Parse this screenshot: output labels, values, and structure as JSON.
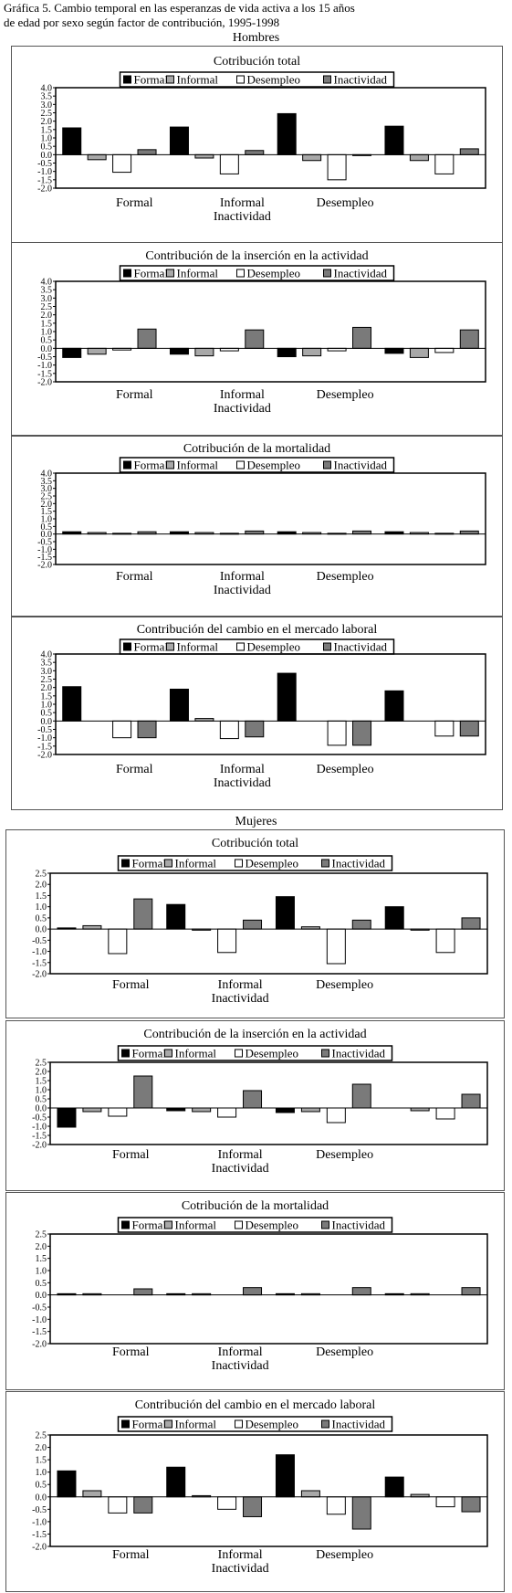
{
  "figure": {
    "title_line1": "Gráfica 5. Cambio temporal en las esperanzas de vida activa a los 15 años",
    "title_line2": "de edad por sexo según factor de contribución, 1995-1998"
  },
  "sections": {
    "men": "Hombres",
    "women": "Mujeres"
  },
  "colors": {
    "Formal": "#000000",
    "Informal": "#a8a8a8",
    "Desempleo": "#ffffff",
    "Inactividad": "#7a7a7a"
  },
  "chart_data": [
    {
      "type": "bar",
      "group": "Hombres",
      "title": "Cotribución total",
      "categories": [
        "Formal",
        "Informal",
        "Desempleo",
        "Inactividad"
      ],
      "legend": [
        "Formal",
        "Informal",
        "Desempleo",
        "Inactividad"
      ],
      "ylim": [
        -2.0,
        4.0
      ],
      "yticks": [
        4.0,
        3.5,
        3.0,
        2.5,
        2.0,
        1.5,
        1.0,
        0.5,
        0.0,
        -0.5,
        -1.0,
        -1.5,
        -2.0
      ],
      "xlabels_row1": [
        "Formal",
        "Informal",
        "Desempleo"
      ],
      "xlabels_row2": [
        "Inactividad"
      ],
      "series": [
        {
          "name": "Formal",
          "values": [
            1.6,
            1.65,
            2.45,
            1.7
          ]
        },
        {
          "name": "Informal",
          "values": [
            -0.3,
            -0.2,
            -0.35,
            -0.35
          ]
        },
        {
          "name": "Desempleo",
          "values": [
            -1.05,
            -1.15,
            -1.5,
            -1.15
          ]
        },
        {
          "name": "Inactividad",
          "values": [
            0.3,
            0.25,
            -0.05,
            0.35
          ]
        }
      ]
    },
    {
      "type": "bar",
      "group": "Hombres",
      "title": "Contribución de la inserción en la actividad",
      "categories": [
        "Formal",
        "Informal",
        "Desempleo",
        "Inactividad"
      ],
      "legend": [
        "Formal",
        "Informal",
        "Desempleo",
        "Inactividad"
      ],
      "ylim": [
        -2.0,
        4.0
      ],
      "yticks": [
        4.0,
        3.5,
        3.0,
        2.5,
        2.0,
        1.5,
        1.0,
        0.5,
        0.0,
        -0.5,
        -1.0,
        -1.5,
        -2.0
      ],
      "xlabels_row1": [
        "Formal",
        "Informal",
        "Desempleo"
      ],
      "xlabels_row2": [
        "Inactividad"
      ],
      "series": [
        {
          "name": "Formal",
          "values": [
            -0.55,
            -0.35,
            -0.5,
            -0.3
          ]
        },
        {
          "name": "Informal",
          "values": [
            -0.35,
            -0.45,
            -0.45,
            -0.55
          ]
        },
        {
          "name": "Desempleo",
          "values": [
            -0.1,
            -0.15,
            -0.15,
            -0.25
          ]
        },
        {
          "name": "Inactividad",
          "values": [
            1.15,
            1.1,
            1.25,
            1.1
          ]
        }
      ]
    },
    {
      "type": "bar",
      "group": "Hombres",
      "title": "Cotribución de la mortalidad",
      "categories": [
        "Formal",
        "Informal",
        "Desempleo",
        "Inactividad"
      ],
      "legend": [
        "Formal",
        "Informal",
        "Desempleo",
        "Inactividad"
      ],
      "ylim": [
        -2.0,
        4.0
      ],
      "yticks": [
        4.0,
        3.5,
        3.0,
        2.5,
        2.0,
        1.5,
        1.0,
        0.5,
        0.0,
        -0.5,
        -1.0,
        -1.5,
        -2.0
      ],
      "xlabels_row1": [
        "Formal",
        "Informal",
        "Desempleo"
      ],
      "xlabels_row2": [
        "Inactividad"
      ],
      "series": [
        {
          "name": "Formal",
          "values": [
            0.15,
            0.15,
            0.15,
            0.15
          ]
        },
        {
          "name": "Informal",
          "values": [
            0.1,
            0.1,
            0.1,
            0.1
          ]
        },
        {
          "name": "Desempleo",
          "values": [
            0.05,
            0.05,
            0.05,
            0.05
          ]
        },
        {
          "name": "Inactividad",
          "values": [
            0.15,
            0.2,
            0.2,
            0.2
          ]
        }
      ]
    },
    {
      "type": "bar",
      "group": "Hombres",
      "title": "Contribución del cambio en el mercado laboral",
      "categories": [
        "Formal",
        "Informal",
        "Desempleo",
        "Inactividad"
      ],
      "legend": [
        "Formal",
        "Informal",
        "Desempleo",
        "Inactividad"
      ],
      "ylim": [
        -2.0,
        4.0
      ],
      "yticks": [
        4.0,
        3.5,
        3.0,
        2.5,
        2.0,
        1.5,
        1.0,
        0.5,
        0.0,
        -0.5,
        -1.0,
        -1.5,
        -2.0
      ],
      "xlabels_row1": [
        "Formal",
        "Informal",
        "Desempleo"
      ],
      "xlabels_row2": [
        "Inactividad"
      ],
      "series": [
        {
          "name": "Formal",
          "values": [
            2.05,
            1.9,
            2.85,
            1.8
          ]
        },
        {
          "name": "Informal",
          "values": [
            0.0,
            0.15,
            0.0,
            0.0
          ]
        },
        {
          "name": "Desempleo",
          "values": [
            -1.0,
            -1.05,
            -1.45,
            -0.9
          ]
        },
        {
          "name": "Inactividad",
          "values": [
            -1.0,
            -0.95,
            -1.45,
            -0.9
          ]
        }
      ]
    },
    {
      "type": "bar",
      "group": "Mujeres",
      "title": "Cotribución total",
      "categories": [
        "Formal",
        "Informal",
        "Desempleo",
        "Inactividad"
      ],
      "legend": [
        "Formal",
        "Informal",
        "Desempleo",
        "Inactividad"
      ],
      "ylim": [
        -2.0,
        2.5
      ],
      "yticks": [
        2.5,
        2.0,
        1.5,
        1.0,
        0.5,
        0.0,
        -0.5,
        -1.0,
        -1.5,
        -2.0
      ],
      "xlabels_row1": [
        "Formal",
        "Informal",
        "Desempleo"
      ],
      "xlabels_row2": [
        "Inactividad"
      ],
      "series": [
        {
          "name": "Formal",
          "values": [
            0.05,
            1.1,
            1.45,
            1.0
          ]
        },
        {
          "name": "Informal",
          "values": [
            0.15,
            -0.05,
            0.1,
            -0.05
          ]
        },
        {
          "name": "Desempleo",
          "values": [
            -1.1,
            -1.05,
            -1.55,
            -1.05
          ]
        },
        {
          "name": "Inactividad",
          "values": [
            1.35,
            0.4,
            0.4,
            0.5
          ]
        }
      ]
    },
    {
      "type": "bar",
      "group": "Mujeres",
      "title": "Contribución de la inserción en la actividad",
      "categories": [
        "Formal",
        "Informal",
        "Desempleo",
        "Inactividad"
      ],
      "legend": [
        "Formal",
        "Informal",
        "Desempleo",
        "Inactividad"
      ],
      "ylim": [
        -2.0,
        2.5
      ],
      "yticks": [
        2.5,
        2.0,
        1.5,
        1.0,
        0.5,
        0.0,
        -0.5,
        -1.0,
        -1.5,
        -2.0
      ],
      "xlabels_row1": [
        "Formal",
        "Informal",
        "Desempleo"
      ],
      "xlabels_row2": [
        "Inactividad"
      ],
      "series": [
        {
          "name": "Formal",
          "values": [
            -1.05,
            -0.15,
            -0.25,
            0.0
          ]
        },
        {
          "name": "Informal",
          "values": [
            -0.2,
            -0.2,
            -0.2,
            -0.15
          ]
        },
        {
          "name": "Desempleo",
          "values": [
            -0.45,
            -0.5,
            -0.8,
            -0.6
          ]
        },
        {
          "name": "Inactividad",
          "values": [
            1.75,
            0.95,
            1.3,
            0.75
          ]
        }
      ]
    },
    {
      "type": "bar",
      "group": "Mujeres",
      "title": "Cotribución de la mortalidad",
      "categories": [
        "Formal",
        "Informal",
        "Desempleo",
        "Inactividad"
      ],
      "legend": [
        "Formal",
        "Informal",
        "Desempleo",
        "Inactividad"
      ],
      "ylim": [
        -2.0,
        2.5
      ],
      "yticks": [
        2.5,
        2.0,
        1.5,
        1.0,
        0.5,
        0.0,
        -0.5,
        -1.0,
        -1.5,
        -2.0
      ],
      "xlabels_row1": [
        "Formal",
        "Informal",
        "Desempleo"
      ],
      "xlabels_row2": [
        "Inactividad"
      ],
      "series": [
        {
          "name": "Formal",
          "values": [
            0.05,
            0.05,
            0.05,
            0.05
          ]
        },
        {
          "name": "Informal",
          "values": [
            0.05,
            0.05,
            0.05,
            0.05
          ]
        },
        {
          "name": "Desempleo",
          "values": [
            0.0,
            0.0,
            0.0,
            0.0
          ]
        },
        {
          "name": "Inactividad",
          "values": [
            0.25,
            0.3,
            0.3,
            0.3
          ]
        }
      ]
    },
    {
      "type": "bar",
      "group": "Mujeres",
      "title": "Contribución del cambio en el mercado laboral",
      "categories": [
        "Formal",
        "Informal",
        "Desempleo",
        "Inactividad"
      ],
      "legend": [
        "Formal",
        "Informal",
        "Desempleo",
        "Inactividad"
      ],
      "ylim": [
        -2.0,
        2.5
      ],
      "yticks": [
        2.5,
        2.0,
        1.5,
        1.0,
        0.5,
        0.0,
        -0.5,
        -1.0,
        -1.5,
        -2.0
      ],
      "xlabels_row1": [
        "Formal",
        "Informal",
        "Desempleo"
      ],
      "xlabels_row2": [
        "Inactividad"
      ],
      "series": [
        {
          "name": "Formal",
          "values": [
            1.05,
            1.2,
            1.7,
            0.8
          ]
        },
        {
          "name": "Informal",
          "values": [
            0.25,
            0.05,
            0.25,
            0.1
          ]
        },
        {
          "name": "Desempleo",
          "values": [
            -0.65,
            -0.5,
            -0.7,
            -0.4
          ]
        },
        {
          "name": "Inactividad",
          "values": [
            -0.65,
            -0.8,
            -1.3,
            -0.6
          ]
        }
      ]
    }
  ]
}
